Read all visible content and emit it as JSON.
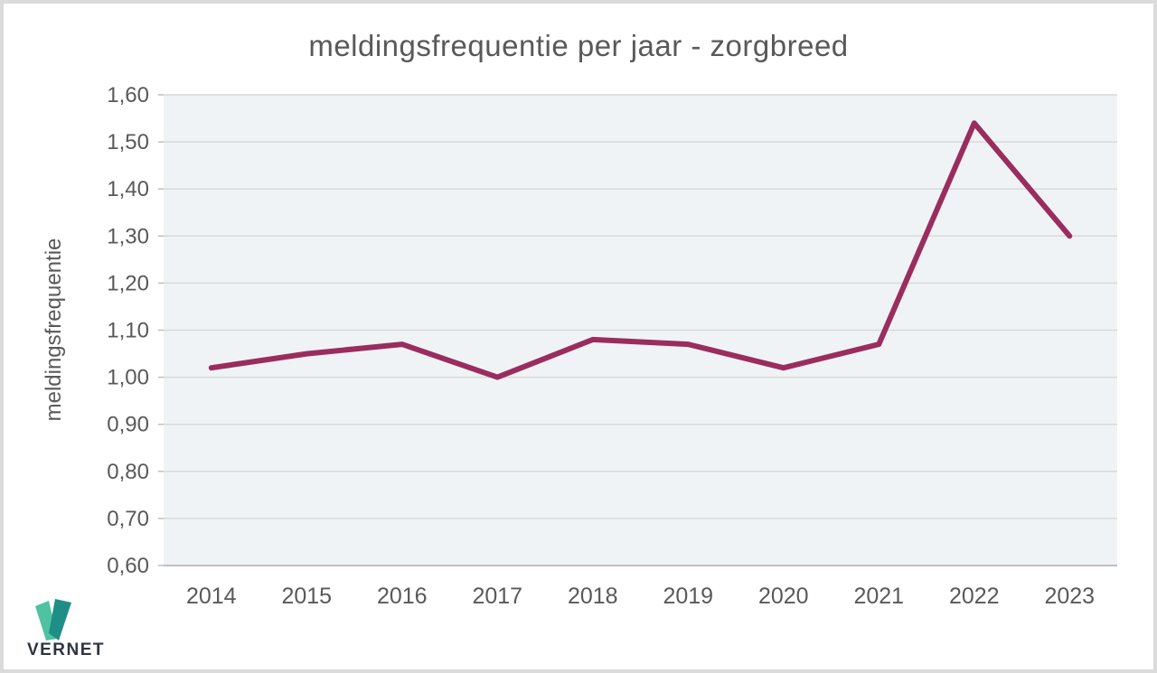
{
  "page": {
    "background": "#ffffff",
    "border_color": "#dbdbdb"
  },
  "chart_data": {
    "type": "line",
    "title": "meldingsfrequentie per jaar - zorgbreed",
    "ylabel": "meldingsfrequentie",
    "xlabel": "",
    "categories": [
      "2014",
      "2015",
      "2016",
      "2017",
      "2018",
      "2019",
      "2020",
      "2021",
      "2022",
      "2023"
    ],
    "values": [
      1.02,
      1.05,
      1.07,
      1.0,
      1.08,
      1.07,
      1.02,
      1.07,
      1.54,
      1.3
    ],
    "ylim": [
      0.6,
      1.6
    ],
    "y_ticks": [
      {
        "label": "1,60",
        "value": 1.6
      },
      {
        "label": "1,50",
        "value": 1.5
      },
      {
        "label": "1,40",
        "value": 1.4
      },
      {
        "label": "1,30",
        "value": 1.3
      },
      {
        "label": "1,20",
        "value": 1.2
      },
      {
        "label": "1,10",
        "value": 1.1
      },
      {
        "label": "1,00",
        "value": 1.0
      },
      {
        "label": "0,90",
        "value": 0.9
      },
      {
        "label": "0,80",
        "value": 0.8
      },
      {
        "label": "0,70",
        "value": 0.7
      },
      {
        "label": "0,60",
        "value": 0.6
      }
    ],
    "grid": true,
    "legend": false,
    "line_color": "#9A2D5D",
    "line_width": 6,
    "plot_bg": "#EFF3F6",
    "grid_color": "#D9D9D9",
    "axis_line_color": "#BFBFBF",
    "text_color": "#595959"
  },
  "logo": {
    "text": "VERNET",
    "text_color": "#2E3540",
    "mark_light_color": "#4FC3A1",
    "mark_dark_color": "#1F8E86"
  }
}
